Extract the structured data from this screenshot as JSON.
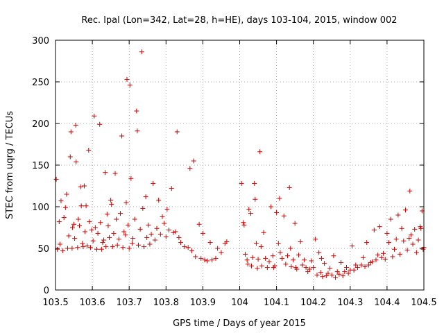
{
  "chart_data": {
    "type": "scatter",
    "title": "Rec. lpal (Lon=342, Lat=28, h=HE), days 103-104, 2015, window 002",
    "xlabel": "GPS time / Days of year 2015",
    "ylabel": "STEC from uqrg / TECUs",
    "xlim": [
      103.5,
      104.5
    ],
    "ylim": [
      0,
      300
    ],
    "xticks": [
      "103.5",
      "103.6",
      "103.7",
      "103.8",
      "103.9",
      "104",
      "104.1",
      "104.2",
      "104.3",
      "104.4",
      "104.5"
    ],
    "yticks": [
      "0",
      "50",
      "100",
      "150",
      "200",
      "250",
      "300"
    ],
    "grid": true,
    "marker": "plus",
    "colors": {
      "points": "#cc0000",
      "grid": "#aaaaaa",
      "axis": "#000000"
    },
    "points": [
      [
        103.502,
        133
      ],
      [
        103.505,
        49
      ],
      [
        103.51,
        82
      ],
      [
        103.512,
        55
      ],
      [
        103.515,
        107
      ],
      [
        103.52,
        47
      ],
      [
        103.523,
        87
      ],
      [
        103.527,
        99
      ],
      [
        103.53,
        115
      ],
      [
        103.533,
        50
      ],
      [
        103.536,
        65
      ],
      [
        103.54,
        160
      ],
      [
        103.542,
        190
      ],
      [
        103.545,
        50
      ],
      [
        103.546,
        75
      ],
      [
        103.55,
        79
      ],
      [
        103.552,
        62
      ],
      [
        103.555,
        198
      ],
      [
        103.556,
        154
      ],
      [
        103.56,
        51
      ],
      [
        103.562,
        85
      ],
      [
        103.565,
        77
      ],
      [
        103.568,
        124
      ],
      [
        103.57,
        101
      ],
      [
        103.573,
        56
      ],
      [
        103.575,
        52
      ],
      [
        103.578,
        125
      ],
      [
        103.58,
        70
      ],
      [
        103.583,
        101
      ],
      [
        103.586,
        53
      ],
      [
        103.59,
        168
      ],
      [
        103.592,
        82
      ],
      [
        103.595,
        51
      ],
      [
        103.598,
        72
      ],
      [
        103.602,
        59
      ],
      [
        103.605,
        209
      ],
      [
        103.608,
        75
      ],
      [
        103.612,
        49
      ],
      [
        103.615,
        68
      ],
      [
        103.62,
        199
      ],
      [
        103.622,
        81
      ],
      [
        103.625,
        49
      ],
      [
        103.628,
        57
      ],
      [
        103.631,
        60
      ],
      [
        103.635,
        141
      ],
      [
        103.637,
        52
      ],
      [
        103.64,
        91
      ],
      [
        103.643,
        77
      ],
      [
        103.646,
        63
      ],
      [
        103.65,
        108
      ],
      [
        103.652,
        103
      ],
      [
        103.655,
        52
      ],
      [
        103.658,
        68
      ],
      [
        103.662,
        140
      ],
      [
        103.665,
        85
      ],
      [
        103.668,
        54
      ],
      [
        103.672,
        61
      ],
      [
        103.676,
        92
      ],
      [
        103.68,
        185
      ],
      [
        103.683,
        51
      ],
      [
        103.686,
        70
      ],
      [
        103.69,
        66
      ],
      [
        103.692,
        105
      ],
      [
        103.694,
        253
      ],
      [
        103.697,
        78
      ],
      [
        103.7,
        50
      ],
      [
        103.702,
        246
      ],
      [
        103.705,
        134
      ],
      [
        103.708,
        56
      ],
      [
        103.71,
        62
      ],
      [
        103.715,
        85
      ],
      [
        103.72,
        215
      ],
      [
        103.722,
        191
      ],
      [
        103.725,
        54
      ],
      [
        103.73,
        73
      ],
      [
        103.734,
        286
      ],
      [
        103.737,
        98
      ],
      [
        103.74,
        52
      ],
      [
        103.745,
        112
      ],
      [
        103.748,
        63
      ],
      [
        103.752,
        78
      ],
      [
        103.756,
        55
      ],
      [
        103.76,
        67
      ],
      [
        103.765,
        128
      ],
      [
        103.77,
        60
      ],
      [
        103.775,
        74
      ],
      [
        103.78,
        108
      ],
      [
        103.785,
        67
      ],
      [
        103.79,
        88
      ],
      [
        103.795,
        80
      ],
      [
        103.8,
        64
      ],
      [
        103.803,
        97
      ],
      [
        103.808,
        72
      ],
      [
        103.815,
        122
      ],
      [
        103.82,
        69
      ],
      [
        103.826,
        70
      ],
      [
        103.83,
        190
      ],
      [
        103.835,
        63
      ],
      [
        103.84,
        57
      ],
      [
        103.85,
        52
      ],
      [
        103.86,
        51
      ],
      [
        103.865,
        146
      ],
      [
        103.87,
        47
      ],
      [
        103.875,
        155
      ],
      [
        103.88,
        40
      ],
      [
        103.89,
        79
      ],
      [
        103.895,
        38
      ],
      [
        103.9,
        68
      ],
      [
        103.905,
        36
      ],
      [
        103.912,
        35
      ],
      [
        103.92,
        57
      ],
      [
        103.925,
        36
      ],
      [
        103.935,
        38
      ],
      [
        103.94,
        50
      ],
      [
        103.95,
        45
      ],
      [
        103.96,
        56
      ],
      [
        103.965,
        58
      ],
      [
        104.005,
        128
      ],
      [
        104.01,
        81
      ],
      [
        104.012,
        78
      ],
      [
        104.015,
        43
      ],
      [
        104.02,
        36
      ],
      [
        104.022,
        31
      ],
      [
        104.025,
        97
      ],
      [
        104.03,
        92
      ],
      [
        104.032,
        29
      ],
      [
        104.035,
        39
      ],
      [
        104.04,
        128
      ],
      [
        104.042,
        109
      ],
      [
        104.045,
        56
      ],
      [
        104.048,
        26
      ],
      [
        104.05,
        37
      ],
      [
        104.055,
        166
      ],
      [
        104.058,
        52
      ],
      [
        104.06,
        29
      ],
      [
        104.065,
        69
      ],
      [
        104.07,
        38
      ],
      [
        104.075,
        27
      ],
      [
        104.08,
        34
      ],
      [
        104.085,
        100
      ],
      [
        104.09,
        41
      ],
      [
        104.092,
        27
      ],
      [
        104.095,
        29
      ],
      [
        104.1,
        93
      ],
      [
        104.105,
        56
      ],
      [
        104.108,
        110
      ],
      [
        104.11,
        45
      ],
      [
        104.115,
        38
      ],
      [
        104.12,
        89
      ],
      [
        104.125,
        31
      ],
      [
        104.13,
        41
      ],
      [
        104.135,
        123
      ],
      [
        104.138,
        50
      ],
      [
        104.14,
        28
      ],
      [
        104.145,
        36
      ],
      [
        104.15,
        80
      ],
      [
        104.152,
        27
      ],
      [
        104.155,
        25
      ],
      [
        104.16,
        42
      ],
      [
        104.165,
        58
      ],
      [
        104.17,
        30
      ],
      [
        104.175,
        36
      ],
      [
        104.18,
        27
      ],
      [
        104.185,
        22
      ],
      [
        104.19,
        25
      ],
      [
        104.195,
        35
      ],
      [
        104.2,
        27
      ],
      [
        104.205,
        61
      ],
      [
        104.21,
        18
      ],
      [
        104.215,
        45
      ],
      [
        104.22,
        21
      ],
      [
        104.222,
        38
      ],
      [
        104.225,
        16
      ],
      [
        104.23,
        32
      ],
      [
        104.235,
        17
      ],
      [
        104.24,
        20
      ],
      [
        104.245,
        26
      ],
      [
        104.25,
        18
      ],
      [
        104.255,
        41
      ],
      [
        104.26,
        15
      ],
      [
        104.265,
        22
      ],
      [
        104.27,
        19
      ],
      [
        104.275,
        33
      ],
      [
        104.28,
        17
      ],
      [
        104.285,
        22
      ],
      [
        104.29,
        27
      ],
      [
        104.295,
        20
      ],
      [
        104.3,
        24
      ],
      [
        104.305,
        53
      ],
      [
        104.31,
        24
      ],
      [
        104.315,
        30
      ],
      [
        104.32,
        27
      ],
      [
        104.33,
        30
      ],
      [
        104.335,
        39
      ],
      [
        104.34,
        28
      ],
      [
        104.345,
        57
      ],
      [
        104.35,
        30
      ],
      [
        104.355,
        33
      ],
      [
        104.36,
        34
      ],
      [
        104.365,
        72
      ],
      [
        104.37,
        36
      ],
      [
        104.375,
        42
      ],
      [
        104.38,
        76
      ],
      [
        104.385,
        39
      ],
      [
        104.39,
        44
      ],
      [
        104.395,
        37
      ],
      [
        104.4,
        68
      ],
      [
        104.405,
        57
      ],
      [
        104.41,
        85
      ],
      [
        104.415,
        40
      ],
      [
        104.42,
        49
      ],
      [
        104.425,
        61
      ],
      [
        104.43,
        90
      ],
      [
        104.435,
        43
      ],
      [
        104.44,
        74
      ],
      [
        104.445,
        59
      ],
      [
        104.45,
        96
      ],
      [
        104.455,
        48
      ],
      [
        104.46,
        62
      ],
      [
        104.462,
        119
      ],
      [
        104.465,
        66
      ],
      [
        104.47,
        55
      ],
      [
        104.475,
        73
      ],
      [
        104.48,
        45
      ],
      [
        104.485,
        60
      ],
      [
        104.49,
        76
      ],
      [
        104.492,
        74
      ],
      [
        104.495,
        95
      ],
      [
        104.498,
        49
      ],
      [
        104.5,
        51
      ]
    ]
  }
}
